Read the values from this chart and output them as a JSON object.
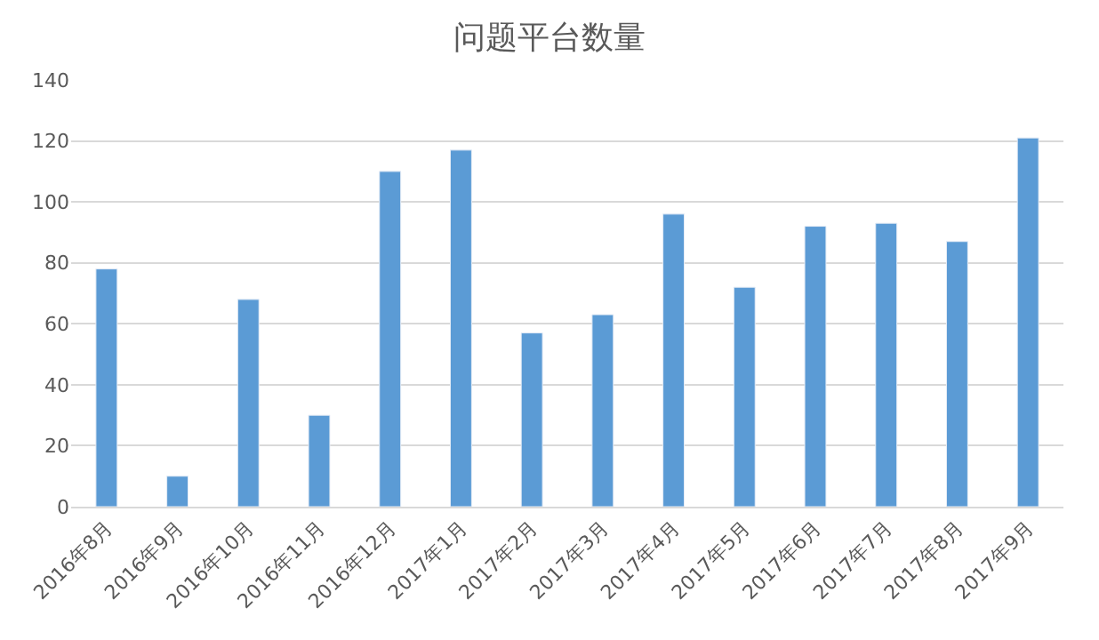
{
  "chart_data": {
    "type": "bar",
    "title": "问题平台数量",
    "categories": [
      "2016年8月",
      "2016年9月",
      "2016年10月",
      "2016年11月",
      "2016年12月",
      "2017年1月",
      "2017年2月",
      "2017年3月",
      "2017年4月",
      "2017年5月",
      "2017年6月",
      "2017年7月",
      "2017年8月",
      "2017年9月"
    ],
    "values": [
      78,
      10,
      68,
      30,
      110,
      117,
      57,
      63,
      96,
      72,
      92,
      93,
      87,
      121
    ],
    "color": "#5b9bd5",
    "ylim": [
      0,
      140
    ],
    "yticks": [
      0,
      20,
      40,
      60,
      80,
      100,
      120,
      140
    ],
    "grid": "y",
    "legend": false
  }
}
